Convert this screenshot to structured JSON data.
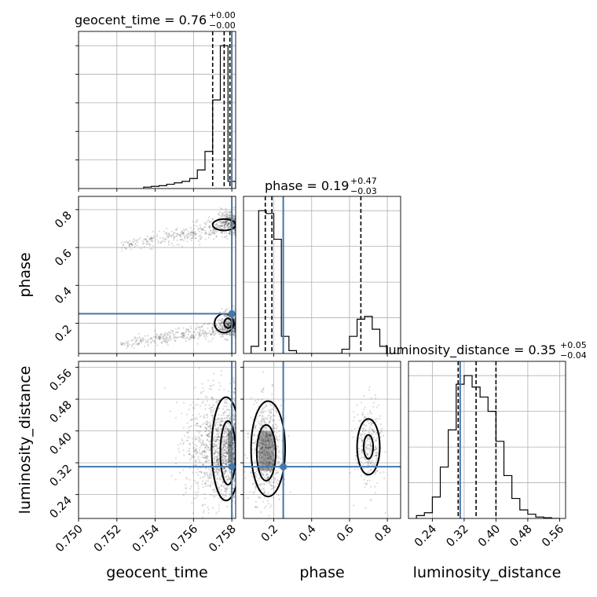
{
  "chart_data": {
    "type": "corner",
    "parameters": [
      "geocent_time",
      "phase",
      "luminosity_distance"
    ],
    "truth_color": "#4477aa",
    "truths": {
      "geocent_time": 0.758,
      "phase": 0.25,
      "luminosity_distance": 0.31
    },
    "panels": {
      "geocent_time": {
        "title_main": "geocent_time = 0.76",
        "title_sup": "+0.00",
        "title_sub": "−0.00",
        "xlim": [
          0.75,
          0.7582
        ],
        "xticks": [
          "0.750",
          "0.752",
          "0.754",
          "0.756",
          "0.758"
        ],
        "xtick_values": [
          0.75,
          0.752,
          0.754,
          0.756,
          0.758
        ],
        "quantiles": [
          0.757,
          0.7576,
          0.7579
        ],
        "bin_edges": [
          0.7534,
          0.7538,
          0.7542,
          0.7546,
          0.755,
          0.7554,
          0.7558,
          0.7562,
          0.7566,
          0.757,
          0.7574,
          0.7578,
          0.7582
        ],
        "counts": [
          0.01,
          0.015,
          0.02,
          0.03,
          0.04,
          0.05,
          0.07,
          0.13,
          0.26,
          0.62,
          1.0,
          0.05
        ]
      },
      "phase": {
        "title_main": "phase = 0.19",
        "title_sup": "+0.47",
        "title_sub": "−0.03",
        "xlim": [
          0.04,
          0.87
        ],
        "xticks": [
          "0.2",
          "0.4",
          "0.6",
          "0.8"
        ],
        "xtick_values": [
          0.2,
          0.4,
          0.6,
          0.8
        ],
        "yticks": [
          "0.2",
          "0.4",
          "0.6",
          "0.8"
        ],
        "ytick_values": [
          0.2,
          0.4,
          0.6,
          0.8
        ],
        "quantiles": [
          0.155,
          0.19,
          0.66
        ],
        "bin_edges": [
          0.08,
          0.12,
          0.16,
          0.2,
          0.24,
          0.28,
          0.32,
          0.36,
          0.4,
          0.44,
          0.48,
          0.52,
          0.56,
          0.6,
          0.64,
          0.68,
          0.72,
          0.76,
          0.8
        ],
        "counts": [
          0.05,
          1.0,
          0.98,
          0.8,
          0.12,
          0.02,
          0.0,
          0.0,
          0.0,
          0.0,
          0.0,
          0.0,
          0.03,
          0.12,
          0.24,
          0.26,
          0.17,
          0.05
        ]
      },
      "luminosity_distance": {
        "title_main": "luminosity_distance = 0.35",
        "title_sup": "+0.05",
        "title_sub": "−0.04",
        "xlim": [
          0.18,
          0.575
        ],
        "xticks": [
          "0.24",
          "0.32",
          "0.40",
          "0.48",
          "0.56"
        ],
        "xtick_values": [
          0.24,
          0.32,
          0.4,
          0.48,
          0.56
        ],
        "yticks": [
          "0.24",
          "0.32",
          "0.40",
          "0.48",
          "0.56"
        ],
        "ytick_values": [
          0.24,
          0.32,
          0.4,
          0.48,
          0.56
        ],
        "quantiles": [
          0.305,
          0.35,
          0.4
        ],
        "bin_edges": [
          0.2,
          0.22,
          0.24,
          0.26,
          0.28,
          0.3,
          0.32,
          0.34,
          0.36,
          0.38,
          0.4,
          0.42,
          0.44,
          0.46,
          0.48,
          0.5,
          0.52,
          0.54,
          0.56
        ],
        "counts": [
          0.02,
          0.04,
          0.15,
          0.36,
          0.62,
          0.94,
          1.0,
          0.92,
          0.85,
          0.75,
          0.54,
          0.3,
          0.14,
          0.06,
          0.03,
          0.01,
          0.005,
          0.0
        ]
      }
    }
  }
}
